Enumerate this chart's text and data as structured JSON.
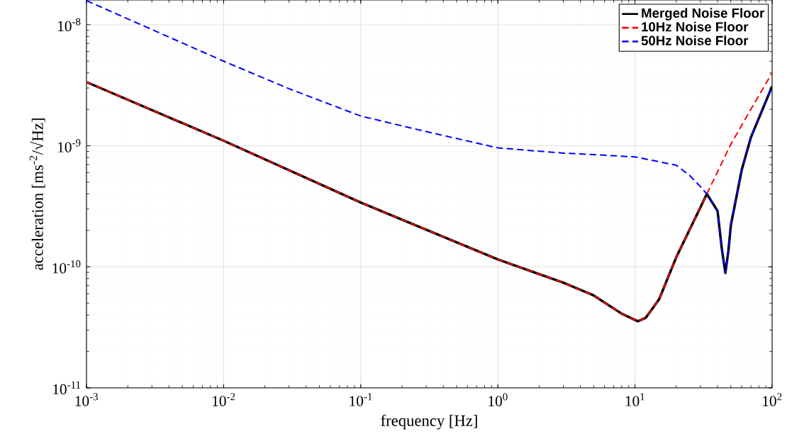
{
  "chart_data": {
    "type": "line",
    "xlabel": "frequency [Hz]",
    "ylabel": "acceleration [ms$^{-2}$/√Hz]",
    "log": "xy",
    "grid": true,
    "legend": "top right",
    "xlim": [
      0.001,
      100
    ],
    "ylim": [
      1e-11,
      1.6e-08
    ],
    "xticks": [
      {
        "value": 0.001,
        "label": "10$^{-3}$"
      },
      {
        "value": 0.01,
        "label": "10$^{-2}$"
      },
      {
        "value": 0.1,
        "label": "10$^{-1}$"
      },
      {
        "value": 1,
        "label": "10$^{0}$"
      },
      {
        "value": 10,
        "label": "10$^{1}$"
      },
      {
        "value": 100,
        "label": "10$^{2}$"
      }
    ],
    "yticks": [
      {
        "value": 1e-11,
        "label": "10$^{-11}$"
      },
      {
        "value": 1e-10,
        "label": "10$^{-10}$"
      },
      {
        "value": 1e-09,
        "label": "10$^{-9}$"
      },
      {
        "value": 1e-08,
        "label": "10$^{-8}$"
      }
    ],
    "series": [
      {
        "name": "Merged Noise Floor",
        "color": "#000000",
        "line_style": "solid",
        "x": [
          0.001,
          0.01,
          0.1,
          1,
          3,
          5,
          8,
          10.5,
          12,
          15,
          20,
          30,
          33.4,
          40,
          43,
          45.6,
          48,
          50,
          60,
          70,
          100
        ],
        "values": [
          3.36e-09,
          1.1e-09,
          3.4e-10,
          1.15e-10,
          7.4e-11,
          5.8e-11,
          4.1e-11,
          3.55e-11,
          3.8e-11,
          5.4e-11,
          1.2e-10,
          3.1e-10,
          4e-10,
          2.9e-10,
          1.4e-10,
          8.9e-11,
          1.35e-10,
          2.2e-10,
          6.3e-10,
          1.17e-09,
          3.1e-09
        ]
      },
      {
        "name": "10Hz Noise Floor",
        "color": "#ff0000",
        "line_style": "dashed",
        "x": [
          0.001,
          0.01,
          0.1,
          1,
          3,
          5,
          8,
          10.5,
          12,
          15,
          20,
          30,
          33.4,
          50,
          70,
          100
        ],
        "values": [
          3.36e-09,
          1.1e-09,
          3.4e-10,
          1.15e-10,
          7.4e-11,
          5.8e-11,
          4.1e-11,
          3.55e-11,
          3.8e-11,
          5.4e-11,
          1.2e-10,
          3.1e-10,
          4e-10,
          1.03e-09,
          2e-09,
          4e-09
        ]
      },
      {
        "name": "50Hz Noise Floor",
        "color": "#0000ff",
        "line_style": "dashed",
        "x": [
          0.001,
          0.01,
          0.03,
          0.1,
          0.3,
          1,
          3,
          10,
          20,
          25,
          30,
          33.4,
          40,
          43,
          45.6,
          48,
          50,
          60,
          70,
          100
        ],
        "values": [
          1.58e-08,
          5e-09,
          2.96e-09,
          1.76e-09,
          1.31e-09,
          9.6e-10,
          8.7e-10,
          8.1e-10,
          6.9e-10,
          5.7e-10,
          4.6e-10,
          4e-10,
          2.9e-10,
          1.4e-10,
          8.9e-11,
          1.35e-10,
          2.2e-10,
          6.3e-10,
          1.17e-09,
          3.1e-09
        ]
      }
    ]
  }
}
